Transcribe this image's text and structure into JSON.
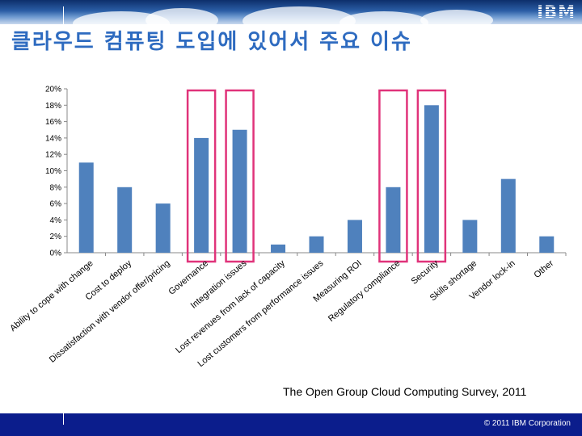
{
  "header": {
    "logo_text": "IBM",
    "title": "클라우드 컴퓨팅 도입에 있어서 주요 이슈"
  },
  "chart_data": {
    "type": "bar",
    "categories": [
      "Ability to cope with change",
      "Cost to deploy",
      "Dissatisfaction with vendor offer/pricing",
      "Governance",
      "Integration issues",
      "Lost revenues from lack of capacity",
      "Lost customers from performance issues",
      "Measuring ROI",
      "Regulatory compliance",
      "Security",
      "Skills shortage",
      "Vendor lock-in",
      "Other"
    ],
    "values": [
      11,
      8,
      6,
      14,
      15,
      1,
      2,
      4,
      8,
      18,
      4,
      9,
      2
    ],
    "ylim": [
      0,
      20
    ],
    "yticks": [
      "0%",
      "2%",
      "4%",
      "6%",
      "8%",
      "10%",
      "12%",
      "14%",
      "16%",
      "18%",
      "20%"
    ],
    "highlighted": [
      "Governance",
      "Integration issues",
      "Regulatory compliance",
      "Security"
    ],
    "grid": false,
    "bar_color": "#4f81bd",
    "highlight_color": "#e0337a"
  },
  "source": "The Open Group Cloud Computing Survey, 2011",
  "footer": {
    "copyright": "© 2011 IBM Corporation"
  }
}
